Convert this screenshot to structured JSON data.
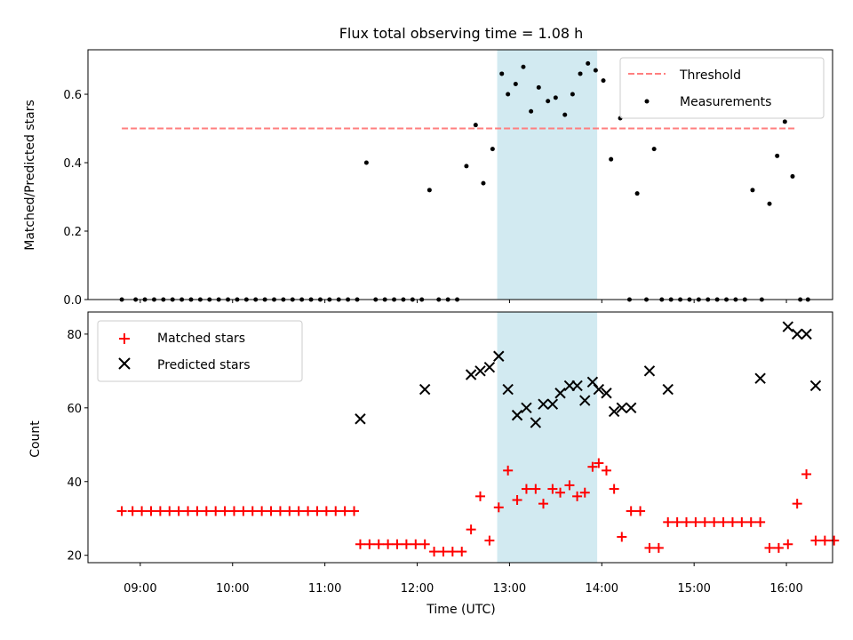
{
  "chart_data": [
    {
      "type": "scatter",
      "title": "Flux total observing time = 1.08 h",
      "ylabel": "Matched/Predicted stars",
      "xlim": [
        "08:26",
        "16:30"
      ],
      "ylim": [
        0,
        0.73
      ],
      "yticks": [
        0.0,
        0.2,
        0.4,
        0.6
      ],
      "ytick_labels": [
        "0.0",
        "0.2",
        "0.4",
        "0.6"
      ],
      "highlight_span": [
        "12:52",
        "13:57"
      ],
      "legend_position": "upper right",
      "threshold": {
        "name": "Threshold",
        "value": 0.5,
        "x_start": "08:48",
        "x_end": "16:06",
        "color": "#ff7f7f",
        "style": "dashed"
      },
      "series": [
        {
          "name": "Measurements",
          "color": "#000000",
          "marker": "dot",
          "points": [
            [
              "08:48",
              0
            ],
            [
              "08:57",
              0
            ],
            [
              "09:03",
              0
            ],
            [
              "09:09",
              0
            ],
            [
              "09:15",
              0
            ],
            [
              "09:21",
              0
            ],
            [
              "09:27",
              0
            ],
            [
              "09:33",
              0
            ],
            [
              "09:39",
              0
            ],
            [
              "09:45",
              0
            ],
            [
              "09:51",
              0
            ],
            [
              "09:57",
              0
            ],
            [
              "10:03",
              0
            ],
            [
              "10:09",
              0
            ],
            [
              "10:15",
              0
            ],
            [
              "10:21",
              0
            ],
            [
              "10:27",
              0
            ],
            [
              "10:33",
              0
            ],
            [
              "10:39",
              0
            ],
            [
              "10:45",
              0
            ],
            [
              "10:51",
              0
            ],
            [
              "10:57",
              0
            ],
            [
              "11:03",
              0
            ],
            [
              "11:09",
              0
            ],
            [
              "11:15",
              0
            ],
            [
              "11:21",
              0
            ],
            [
              "11:27",
              0.4
            ],
            [
              "11:33",
              0
            ],
            [
              "11:39",
              0
            ],
            [
              "11:45",
              0
            ],
            [
              "11:51",
              0
            ],
            [
              "11:57",
              0
            ],
            [
              "12:03",
              0
            ],
            [
              "12:08",
              0.32
            ],
            [
              "12:14",
              0
            ],
            [
              "12:20",
              0
            ],
            [
              "12:26",
              0
            ],
            [
              "12:32",
              0.39
            ],
            [
              "12:38",
              0.51
            ],
            [
              "12:43",
              0.34
            ],
            [
              "12:49",
              0.44
            ],
            [
              "12:55",
              0.66
            ],
            [
              "12:59",
              0.6
            ],
            [
              "13:04",
              0.63
            ],
            [
              "13:09",
              0.68
            ],
            [
              "13:14",
              0.55
            ],
            [
              "13:19",
              0.62
            ],
            [
              "13:25",
              0.58
            ],
            [
              "13:30",
              0.59
            ],
            [
              "13:36",
              0.54
            ],
            [
              "13:41",
              0.6
            ],
            [
              "13:46",
              0.66
            ],
            [
              "13:51",
              0.69
            ],
            [
              "13:56",
              0.67
            ],
            [
              "14:01",
              0.64
            ],
            [
              "14:06",
              0.41
            ],
            [
              "14:12",
              0.53
            ],
            [
              "14:18",
              0
            ],
            [
              "14:23",
              0.31
            ],
            [
              "14:29",
              0
            ],
            [
              "14:34",
              0.44
            ],
            [
              "14:39",
              0
            ],
            [
              "14:45",
              0
            ],
            [
              "14:51",
              0
            ],
            [
              "14:57",
              0
            ],
            [
              "15:03",
              0
            ],
            [
              "15:09",
              0
            ],
            [
              "15:15",
              0
            ],
            [
              "15:21",
              0
            ],
            [
              "15:27",
              0
            ],
            [
              "15:33",
              0
            ],
            [
              "15:38",
              0.32
            ],
            [
              "15:44",
              0
            ],
            [
              "15:49",
              0.28
            ],
            [
              "15:54",
              0.42
            ],
            [
              "15:59",
              0.52
            ],
            [
              "16:04",
              0.36
            ],
            [
              "16:09",
              0
            ],
            [
              "16:14",
              0
            ]
          ]
        }
      ]
    },
    {
      "type": "scatter",
      "xlabel": "Time (UTC)",
      "ylabel": "Count",
      "xlim": [
        "08:26",
        "16:30"
      ],
      "ylim": [
        18,
        86
      ],
      "yticks": [
        20,
        40,
        60,
        80
      ],
      "ytick_labels": [
        "20",
        "40",
        "60",
        "80"
      ],
      "xticks": [
        "09:00",
        "10:00",
        "11:00",
        "12:00",
        "13:00",
        "14:00",
        "15:00",
        "16:00"
      ],
      "highlight_span": [
        "12:52",
        "13:57"
      ],
      "legend_position": "upper left",
      "series": [
        {
          "name": "Matched stars",
          "color": "#ff0000",
          "marker": "plus",
          "points": [
            [
              "08:48",
              32
            ],
            [
              "08:55",
              32
            ],
            [
              "09:01",
              32
            ],
            [
              "09:07",
              32
            ],
            [
              "09:13",
              32
            ],
            [
              "09:19",
              32
            ],
            [
              "09:25",
              32
            ],
            [
              "09:31",
              32
            ],
            [
              "09:37",
              32
            ],
            [
              "09:43",
              32
            ],
            [
              "09:49",
              32
            ],
            [
              "09:55",
              32
            ],
            [
              "10:01",
              32
            ],
            [
              "10:07",
              32
            ],
            [
              "10:13",
              32
            ],
            [
              "10:19",
              32
            ],
            [
              "10:25",
              32
            ],
            [
              "10:31",
              32
            ],
            [
              "10:37",
              32
            ],
            [
              "10:43",
              32
            ],
            [
              "10:49",
              32
            ],
            [
              "10:55",
              32
            ],
            [
              "11:01",
              32
            ],
            [
              "11:07",
              32
            ],
            [
              "11:13",
              32
            ],
            [
              "11:19",
              32
            ],
            [
              "11:23",
              23
            ],
            [
              "11:29",
              23
            ],
            [
              "11:35",
              23
            ],
            [
              "11:41",
              23
            ],
            [
              "11:47",
              23
            ],
            [
              "11:53",
              23
            ],
            [
              "11:59",
              23
            ],
            [
              "12:05",
              23
            ],
            [
              "12:11",
              21
            ],
            [
              "12:17",
              21
            ],
            [
              "12:23",
              21
            ],
            [
              "12:29",
              21
            ],
            [
              "12:35",
              27
            ],
            [
              "12:41",
              36
            ],
            [
              "12:47",
              24
            ],
            [
              "12:53",
              33
            ],
            [
              "12:59",
              43
            ],
            [
              "13:05",
              35
            ],
            [
              "13:11",
              38
            ],
            [
              "13:17",
              38
            ],
            [
              "13:22",
              34
            ],
            [
              "13:28",
              38
            ],
            [
              "13:33",
              37
            ],
            [
              "13:39",
              39
            ],
            [
              "13:44",
              36
            ],
            [
              "13:49",
              37
            ],
            [
              "13:54",
              44
            ],
            [
              "13:58",
              45
            ],
            [
              "14:03",
              43
            ],
            [
              "14:08",
              38
            ],
            [
              "14:13",
              25
            ],
            [
              "14:19",
              32
            ],
            [
              "14:25",
              32
            ],
            [
              "14:31",
              22
            ],
            [
              "14:37",
              22
            ],
            [
              "14:43",
              29
            ],
            [
              "14:49",
              29
            ],
            [
              "14:55",
              29
            ],
            [
              "15:01",
              29
            ],
            [
              "15:07",
              29
            ],
            [
              "15:13",
              29
            ],
            [
              "15:19",
              29
            ],
            [
              "15:25",
              29
            ],
            [
              "15:31",
              29
            ],
            [
              "15:37",
              29
            ],
            [
              "15:43",
              29
            ],
            [
              "15:49",
              22
            ],
            [
              "15:55",
              22
            ],
            [
              "16:01",
              23
            ],
            [
              "16:07",
              34
            ],
            [
              "16:13",
              42
            ],
            [
              "16:19",
              24
            ],
            [
              "16:25",
              24
            ],
            [
              "16:31",
              24
            ]
          ]
        },
        {
          "name": "Predicted stars",
          "color": "#000000",
          "marker": "x",
          "points": [
            [
              "11:23",
              57
            ],
            [
              "12:05",
              65
            ],
            [
              "12:35",
              69
            ],
            [
              "12:41",
              70
            ],
            [
              "12:47",
              71
            ],
            [
              "12:53",
              74
            ],
            [
              "12:59",
              65
            ],
            [
              "13:05",
              58
            ],
            [
              "13:11",
              60
            ],
            [
              "13:17",
              56
            ],
            [
              "13:22",
              61
            ],
            [
              "13:28",
              61
            ],
            [
              "13:33",
              64
            ],
            [
              "13:39",
              66
            ],
            [
              "13:44",
              66
            ],
            [
              "13:49",
              62
            ],
            [
              "13:54",
              67
            ],
            [
              "13:58",
              65
            ],
            [
              "14:03",
              64
            ],
            [
              "14:08",
              59
            ],
            [
              "14:13",
              60
            ],
            [
              "14:19",
              60
            ],
            [
              "14:31",
              70
            ],
            [
              "14:43",
              65
            ],
            [
              "15:43",
              68
            ],
            [
              "16:01",
              82
            ],
            [
              "16:07",
              80
            ],
            [
              "16:13",
              80
            ],
            [
              "16:19",
              66
            ]
          ]
        }
      ]
    }
  ],
  "legend": {
    "top": [
      "Threshold",
      "Measurements"
    ],
    "bottom": [
      "Matched stars",
      "Predicted stars"
    ]
  },
  "colors": {
    "span": "#add8e6",
    "threshold": "#ff7f7f",
    "matched": "#ff0000",
    "predicted": "#000000",
    "measurement": "#000000"
  }
}
